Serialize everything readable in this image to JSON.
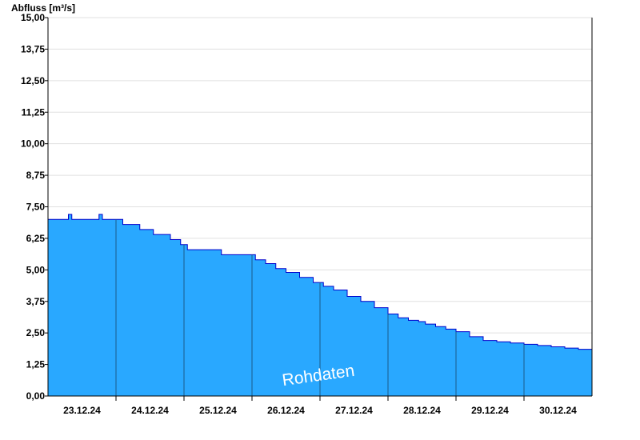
{
  "chart_data": {
    "type": "area",
    "ylabel": "Abfluss [m³/s]",
    "annotation": "Rohdaten",
    "ylim": [
      0,
      15
    ],
    "y_ticks": [
      "0,00",
      "1,25",
      "2,50",
      "3,75",
      "5,00",
      "6,25",
      "7,50",
      "8,75",
      "10,00",
      "11,25",
      "12,50",
      "13,75",
      "15,00"
    ],
    "x_tick_labels": [
      "23.12.24",
      "24.12.24",
      "25.12.24",
      "26.12.24",
      "27.12.24",
      "28.12.24",
      "29.12.24",
      "30.12.24"
    ],
    "x_range_days": [
      22.0,
      30.0
    ],
    "grid": "horizontal",
    "colors": {
      "fill": "#29a8ff",
      "line": "#0000cc",
      "day_lines": "#1a5a8a",
      "grid": "#e0e0e0"
    },
    "series": [
      {
        "x": [
          22.0,
          22.25,
          22.3,
          22.35,
          22.7,
          22.75,
          22.8,
          23.0,
          23.1,
          23.35,
          23.55,
          23.8,
          23.95,
          24.05,
          24.2,
          24.55,
          24.9,
          25.05,
          25.2,
          25.35,
          25.5,
          25.7,
          25.9,
          26.05,
          26.2,
          26.4,
          26.6,
          26.8,
          27.0,
          27.15,
          27.3,
          27.45,
          27.55,
          27.7,
          27.85,
          28.0,
          28.2,
          28.4,
          28.6,
          28.8,
          29.0,
          29.2,
          29.4,
          29.6,
          29.8,
          30.0
        ],
        "y": [
          7.0,
          7.0,
          7.2,
          7.0,
          7.0,
          7.2,
          7.0,
          7.0,
          6.8,
          6.6,
          6.4,
          6.2,
          6.0,
          5.8,
          5.8,
          5.6,
          5.6,
          5.4,
          5.25,
          5.05,
          4.9,
          4.7,
          4.5,
          4.35,
          4.2,
          3.95,
          3.75,
          3.5,
          3.25,
          3.1,
          3.0,
          2.95,
          2.85,
          2.75,
          2.65,
          2.55,
          2.35,
          2.2,
          2.15,
          2.1,
          2.05,
          2.0,
          1.95,
          1.9,
          1.85,
          1.75
        ]
      }
    ]
  }
}
